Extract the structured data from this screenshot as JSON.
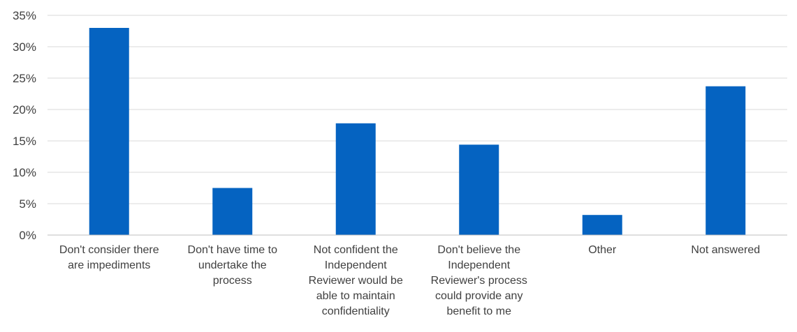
{
  "chart_data": {
    "type": "bar",
    "categories": [
      [
        "Don't consider there",
        "are impediments"
      ],
      [
        "Don't have time to",
        "undertake the",
        "process"
      ],
      [
        "Not confident the",
        "Independent",
        "Reviewer would be",
        "able to maintain",
        "confidentiality"
      ],
      [
        "Don't believe the",
        "Independent",
        "Reviewer's process",
        "could provide any",
        "benefit to me"
      ],
      [
        "Other"
      ],
      [
        "Not answered"
      ]
    ],
    "values": [
      33.0,
      7.5,
      17.8,
      14.4,
      3.2,
      23.7
    ],
    "yticks": [
      "0%",
      "5%",
      "10%",
      "15%",
      "20%",
      "25%",
      "30%",
      "35%"
    ],
    "ylim": [
      0,
      35
    ],
    "grid": true,
    "bar_color": "#0563C1",
    "title": "",
    "xlabel": "",
    "ylabel": ""
  }
}
